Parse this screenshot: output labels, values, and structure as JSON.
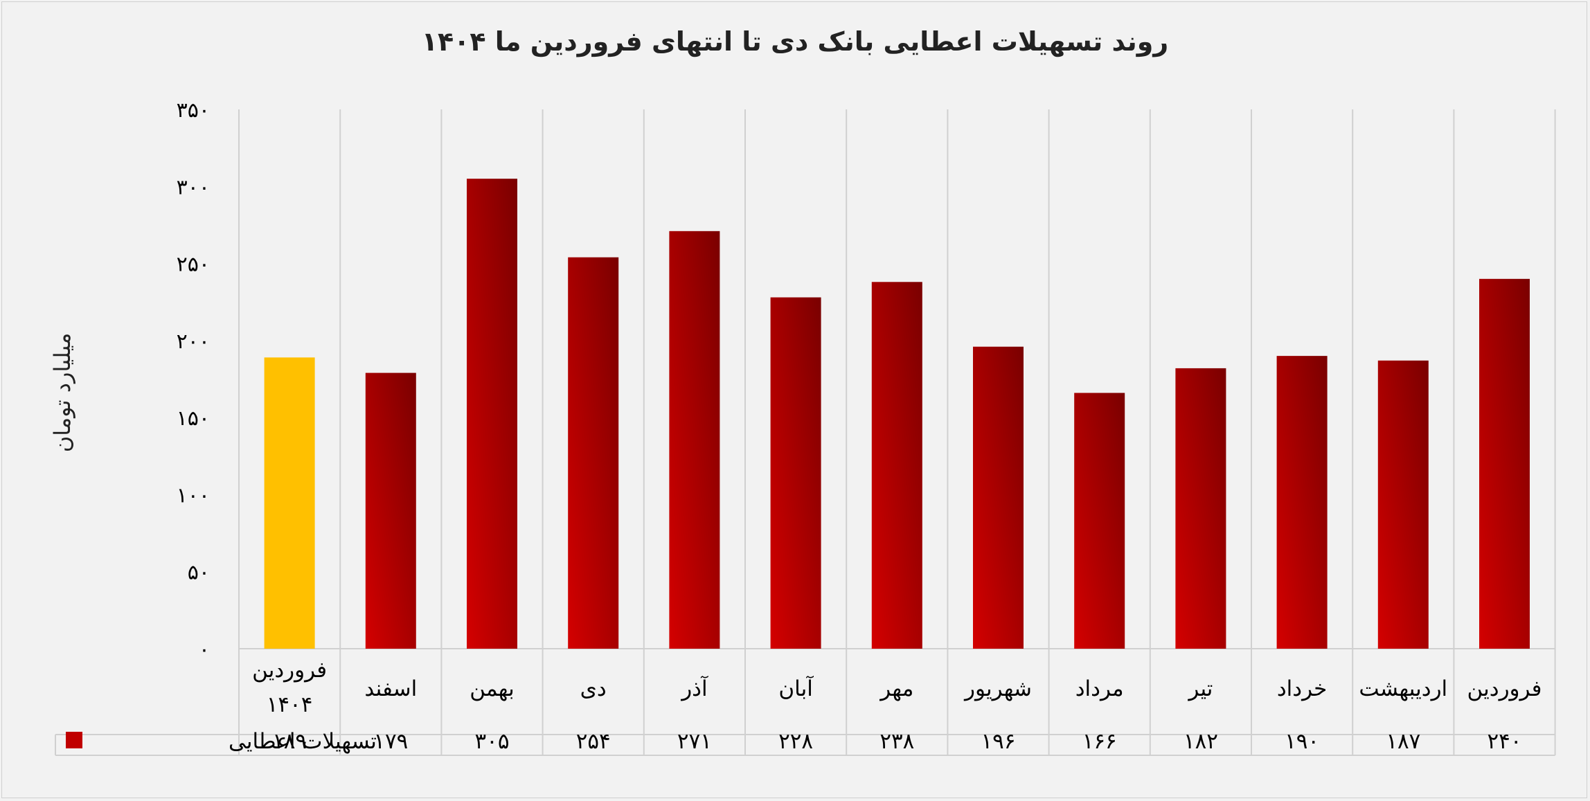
{
  "chart_data": {
    "type": "bar",
    "title": "روند تسهیلات اعطایی بانک دی تا انتهای فروردین ما ۱۴۰۴",
    "ylabel": "میلیارد تومان",
    "xlabel": "",
    "ylim": [
      0,
      350
    ],
    "yticks": [
      "۰",
      "۵۰",
      "۱۰۰",
      "۱۵۰",
      "۲۰۰",
      "۲۵۰",
      "۳۰۰",
      "۳۵۰"
    ],
    "categories": [
      "فروردین ۱۴۰۴",
      "اسفند",
      "بهمن",
      "دی",
      "آذر",
      "آبان",
      "مهر",
      "شهریور",
      "مرداد",
      "تیر",
      "خرداد",
      "اردیبهشت",
      "فروردین"
    ],
    "values": [
      189,
      179,
      305,
      254,
      271,
      228,
      238,
      196,
      166,
      182,
      190,
      187,
      240
    ],
    "value_labels": [
      "۱۸۹",
      "۱۷۹",
      "۳۰۵",
      "۲۵۴",
      "۲۷۱",
      "۲۲۸",
      "۲۳۸",
      "۱۹۶",
      "۱۶۶",
      "۱۸۲",
      "۱۹۰",
      "۱۸۷",
      "۲۴۰"
    ],
    "highlight_index": 0,
    "series": [
      {
        "name": "تسهیلات اعطایی"
      }
    ],
    "grid": true,
    "legend_position": "bottom-table"
  },
  "colors": {
    "bar_dark": "#7a0000",
    "bar_light": "#d40000",
    "highlight": "#ffc000",
    "grid": "#d0d0d0",
    "legend_swatch": "#c00000"
  }
}
